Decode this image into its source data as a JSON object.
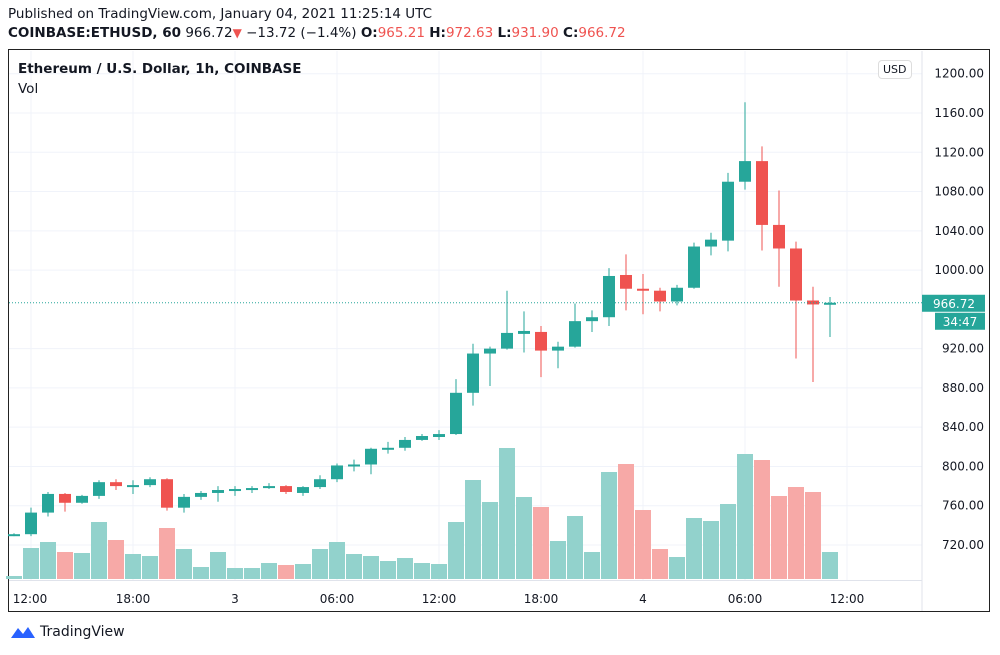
{
  "header": {
    "published": "Published on TradingView.com, January 04, 2021 11:25:14 UTC",
    "symbol": "COINBASE:ETHUSD, 60",
    "last": "966.72",
    "change": "−13.72 (−1.4%)",
    "o_label": "O:",
    "o": "965.21",
    "h_label": "H:",
    "h": "972.63",
    "l_label": "L:",
    "l": "931.90",
    "c_label": "C:",
    "c": "966.72"
  },
  "legend": {
    "title": "Ethereum / U.S. Dollar, 1h, COINBASE",
    "vol": "Vol"
  },
  "currency_button": "USD",
  "price_label": "966.72",
  "countdown": "34:47",
  "logo_text": "TradingView",
  "colors": {
    "up": "#26a69a",
    "down": "#ef5350",
    "up_vol": "#92d2cc",
    "down_vol": "#f7a9a7"
  },
  "chart_data": {
    "type": "candlestick",
    "interval": "1h",
    "ylim": [
      700,
      1200
    ],
    "y_ticks": [
      "1200.00",
      "1160.00",
      "1120.00",
      "1080.00",
      "1040.00",
      "1000.00",
      "920.00",
      "880.00",
      "840.00",
      "800.00",
      "760.00",
      "720.00"
    ],
    "y_tick_values": [
      1200,
      1160,
      1120,
      1080,
      1040,
      1000,
      920,
      880,
      840,
      800,
      760,
      720
    ],
    "x_ticks": [
      "12:00",
      "18:00",
      "3",
      "06:00",
      "12:00",
      "18:00",
      "4",
      "06:00",
      "12:00"
    ],
    "x_tick_index": [
      1,
      7,
      13,
      19,
      25,
      31,
      37,
      43,
      49
    ],
    "grid": true,
    "candles": [
      [
        730,
        732,
        729,
        731
      ],
      [
        731,
        758,
        729,
        753
      ],
      [
        753,
        774,
        749,
        772
      ],
      [
        772,
        773,
        754,
        763
      ],
      [
        763,
        771,
        762,
        770
      ],
      [
        770,
        786,
        767,
        784
      ],
      [
        784,
        787,
        776,
        780
      ],
      [
        780,
        786,
        772,
        781
      ],
      [
        781,
        789,
        779,
        787
      ],
      [
        787,
        788,
        755,
        758
      ],
      [
        758,
        772,
        753,
        769
      ],
      [
        769,
        775,
        766,
        773
      ],
      [
        773,
        780,
        764,
        776
      ],
      [
        776,
        780,
        770,
        777
      ],
      [
        777,
        780,
        773,
        778
      ],
      [
        778,
        783,
        777,
        780
      ],
      [
        780,
        781,
        772,
        774
      ],
      [
        773,
        780,
        770,
        779
      ],
      [
        779,
        791,
        777,
        787
      ],
      [
        787,
        803,
        784,
        801
      ],
      [
        801,
        807,
        795,
        802
      ],
      [
        802,
        819,
        792,
        818
      ],
      [
        818,
        825,
        813,
        819
      ],
      [
        819,
        830,
        816,
        827
      ],
      [
        827,
        833,
        826,
        831
      ],
      [
        830,
        837,
        827,
        833
      ],
      [
        833,
        889,
        832,
        875
      ],
      [
        875,
        925,
        862,
        915
      ],
      [
        915,
        922,
        882,
        920
      ],
      [
        920,
        979,
        919,
        936
      ],
      [
        935,
        958,
        916,
        938
      ],
      [
        937,
        943,
        891,
        918
      ],
      [
        918,
        927,
        900,
        922
      ],
      [
        922,
        966,
        921,
        948
      ],
      [
        948,
        959,
        937,
        952
      ],
      [
        952,
        1002,
        943,
        994
      ],
      [
        995,
        1016,
        959,
        981
      ],
      [
        981,
        996,
        955,
        979
      ],
      [
        979,
        982,
        958,
        968
      ],
      [
        968,
        985,
        964,
        982
      ],
      [
        982,
        1028,
        981,
        1024
      ],
      [
        1024,
        1038,
        1015,
        1031
      ],
      [
        1030,
        1099,
        1019,
        1090
      ],
      [
        1090,
        1171,
        1082,
        1111
      ],
      [
        1111,
        1126,
        1020,
        1046
      ],
      [
        1046,
        1081,
        983,
        1022
      ],
      [
        1022,
        1029,
        910,
        969
      ],
      [
        969,
        983,
        886,
        965
      ],
      [
        965.21,
        972.63,
        931.9,
        966.72
      ]
    ],
    "volume_relative": [
      3,
      31,
      37,
      27,
      26,
      57,
      39,
      25,
      23,
      51,
      30,
      12,
      27,
      11,
      11,
      16,
      14,
      15,
      30,
      37,
      25,
      23,
      18,
      21,
      16,
      15,
      57,
      99,
      77,
      131,
      82,
      72,
      38,
      63,
      27,
      107,
      115,
      69,
      30,
      22,
      61,
      58,
      75,
      125,
      119,
      83,
      92,
      87,
      27
    ]
  }
}
